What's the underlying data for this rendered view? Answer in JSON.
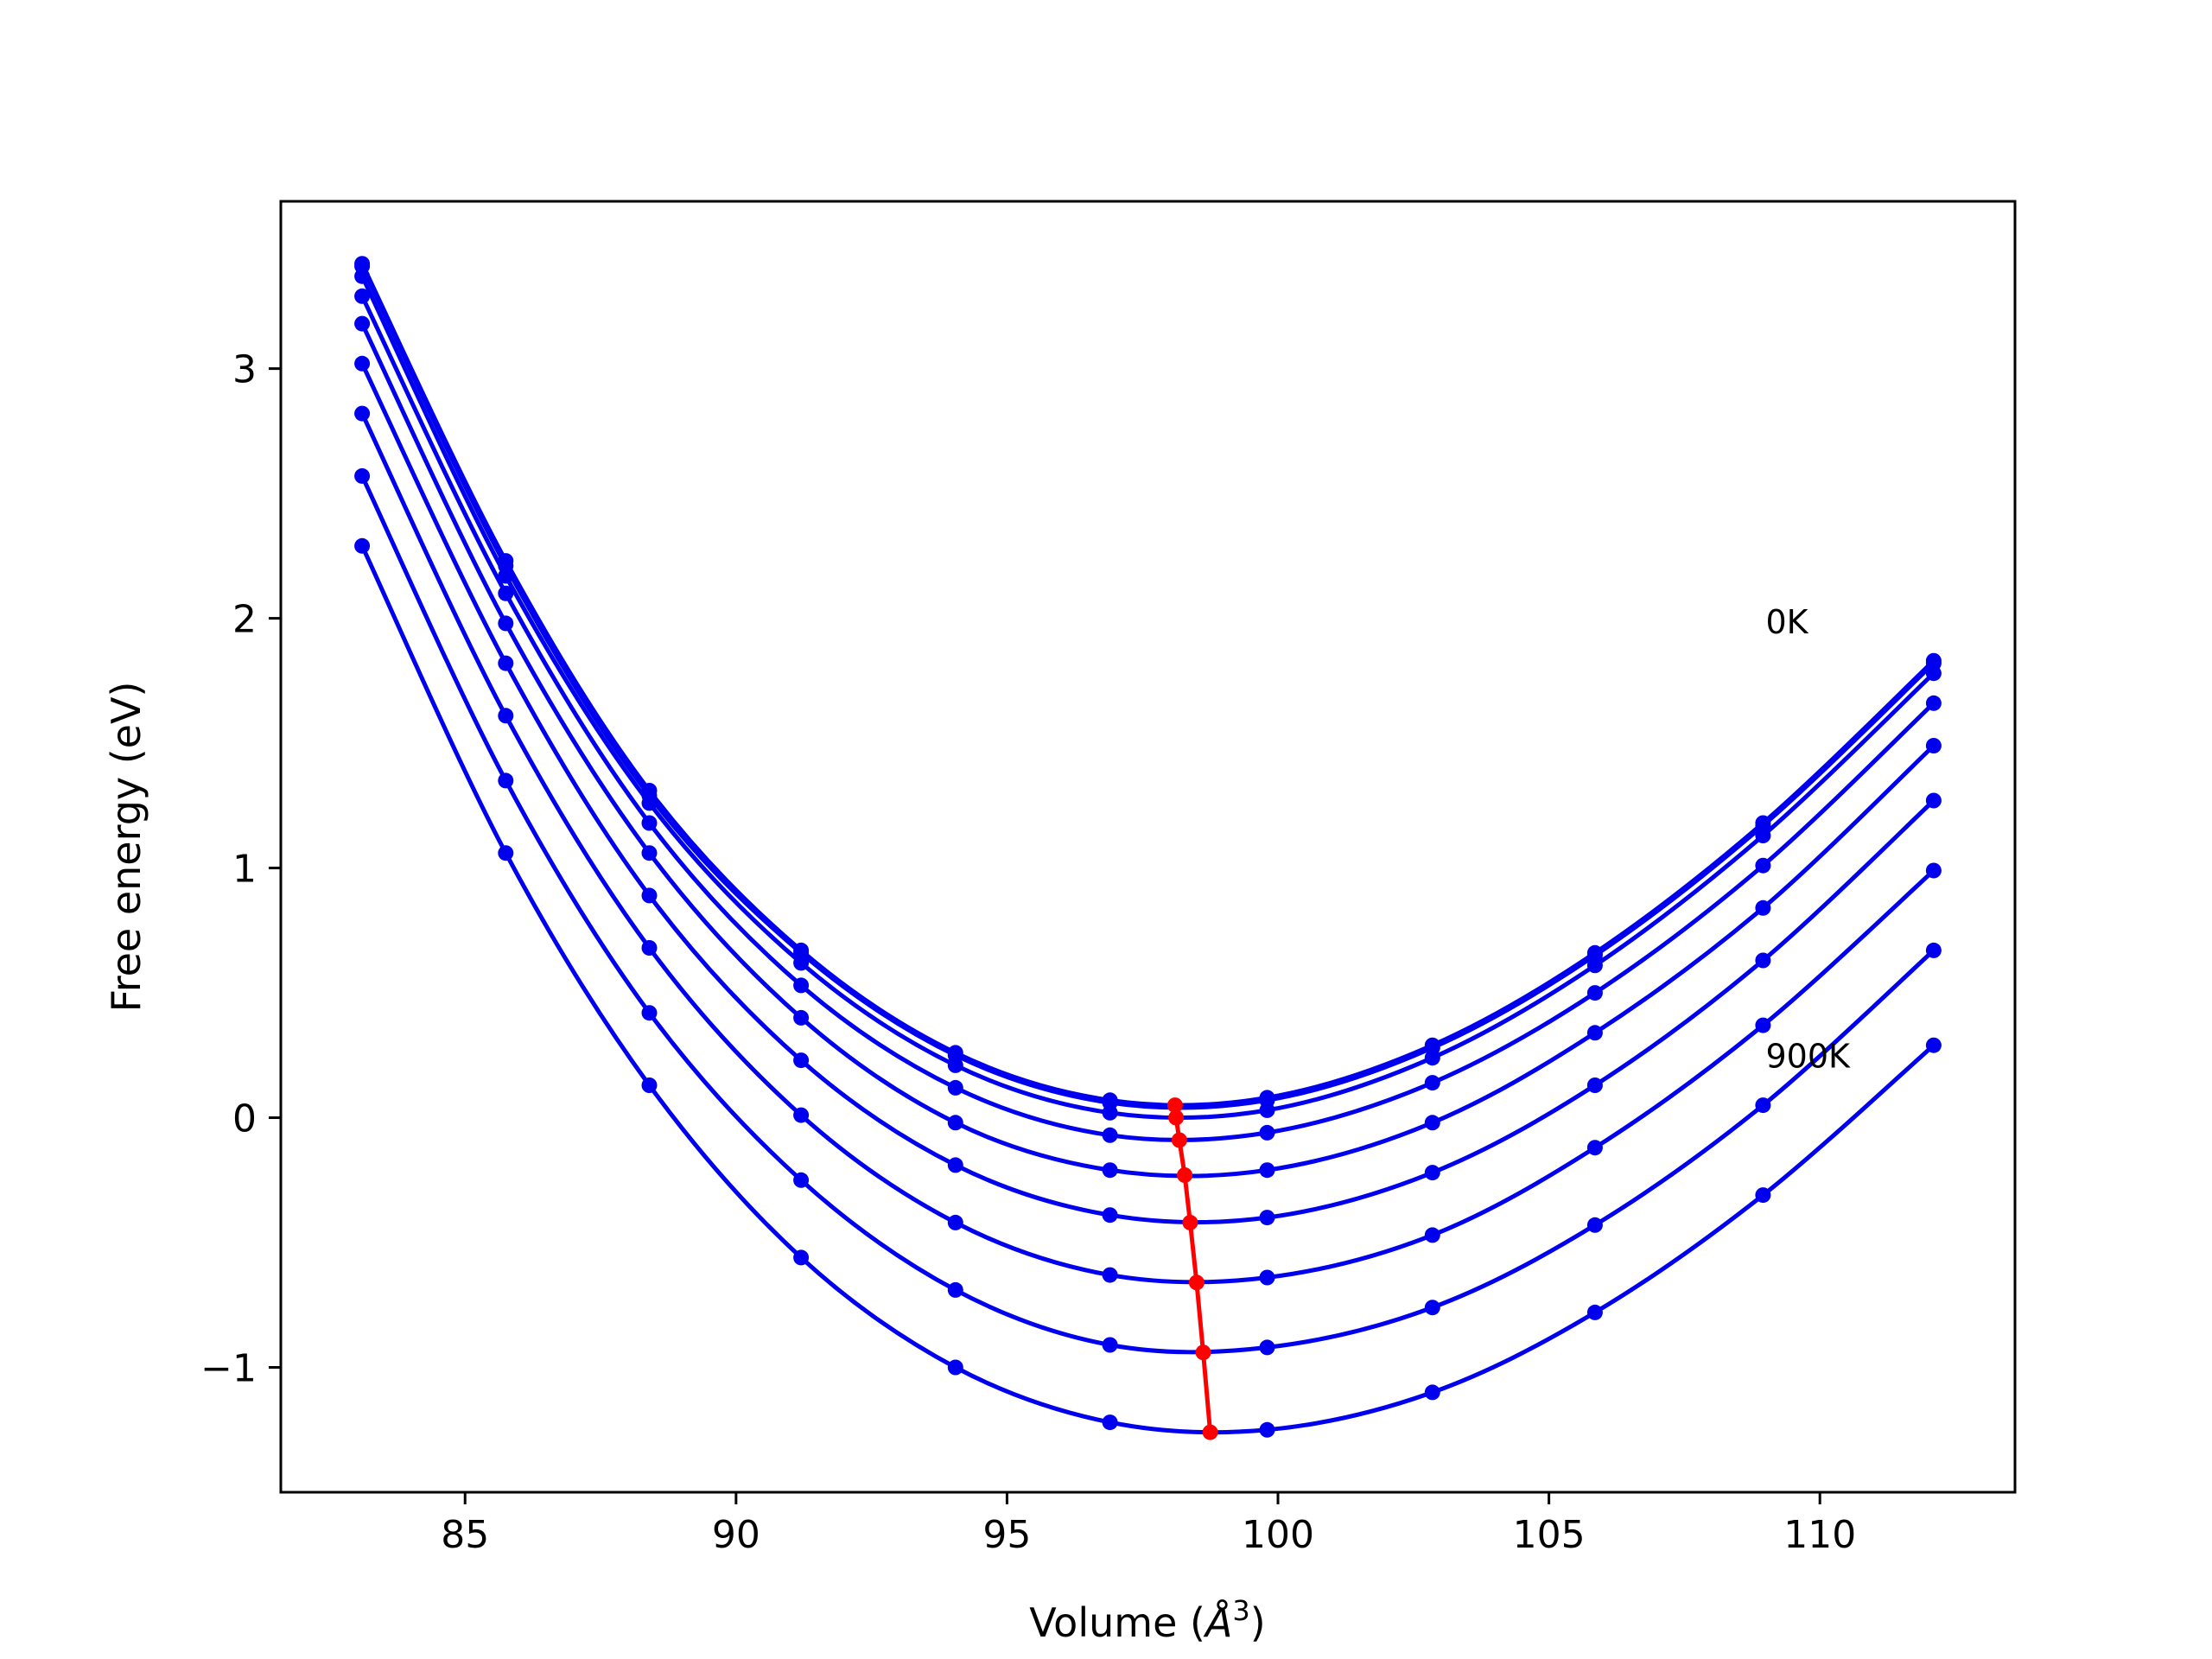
{
  "chart_data": {
    "type": "line",
    "title": "",
    "xlabel": "Volume (",
    "xlabel_math": "Å",
    "xlabel_sup": "3",
    "xlabel_close": ")",
    "ylabel": "Free energy (eV)",
    "xlim": [
      81.6,
      113.6
    ],
    "ylim": [
      -1.5,
      3.67
    ],
    "xticks": [
      85,
      90,
      95,
      100,
      105,
      110
    ],
    "xtick_labels": [
      "85",
      "90",
      "95",
      "100",
      "105",
      "110"
    ],
    "yticks": [
      -1,
      0,
      1,
      2,
      3
    ],
    "ytick_labels": [
      "−1",
      "0",
      "1",
      "2",
      "3"
    ],
    "grid": false,
    "x": [
      83.1,
      85.75,
      88.4,
      91.2,
      94.05,
      96.9,
      99.8,
      102.85,
      105.85,
      108.95,
      112.1
    ],
    "series": [
      {
        "values": [
          3.42,
          2.23,
          1.31,
          0.67,
          0.26,
          0.07,
          0.08,
          0.29,
          0.66,
          1.18,
          1.83
        ]
      },
      {
        "values": [
          3.41,
          2.21,
          1.29,
          0.66,
          0.25,
          0.06,
          0.07,
          0.28,
          0.65,
          1.17,
          1.82
        ]
      },
      {
        "values": [
          3.37,
          2.17,
          1.26,
          0.62,
          0.21,
          0.02,
          0.03,
          0.24,
          0.61,
          1.13,
          1.78
        ]
      },
      {
        "values": [
          3.29,
          2.1,
          1.18,
          0.53,
          0.12,
          -0.07,
          -0.06,
          0.14,
          0.5,
          1.01,
          1.66
        ]
      },
      {
        "values": [
          3.18,
          1.98,
          1.06,
          0.4,
          -0.02,
          -0.21,
          -0.21,
          -0.02,
          0.34,
          0.84,
          1.49
        ]
      },
      {
        "values": [
          3.02,
          1.82,
          0.89,
          0.23,
          -0.19,
          -0.39,
          -0.4,
          -0.22,
          0.13,
          0.63,
          1.27
        ]
      },
      {
        "values": [
          2.82,
          1.61,
          0.68,
          0.01,
          -0.42,
          -0.63,
          -0.64,
          -0.47,
          -0.12,
          0.37,
          0.99
        ]
      },
      {
        "values": [
          2.57,
          1.35,
          0.42,
          -0.25,
          -0.69,
          -0.91,
          -0.92,
          -0.76,
          -0.43,
          0.05,
          0.67
        ]
      },
      {
        "values": [
          2.29,
          1.06,
          0.13,
          -0.56,
          -1.0,
          -1.22,
          -1.25,
          -1.1,
          -0.78,
          -0.31,
          0.29
        ]
      }
    ],
    "minima": {
      "x": [
        98.1,
        98.12,
        98.18,
        98.28,
        98.38,
        98.5,
        98.62,
        98.75
      ],
      "y": [
        0.05,
        0.0,
        -0.09,
        -0.23,
        -0.42,
        -0.66,
        -0.94,
        -1.26
      ]
    },
    "series_color": "#0000ee",
    "minima_color": "#ff0000",
    "annotations": [
      {
        "text": "0K",
        "x": 109.0,
        "y": 1.94
      },
      {
        "text": "900K",
        "x": 109.0,
        "y": 0.2
      }
    ]
  }
}
